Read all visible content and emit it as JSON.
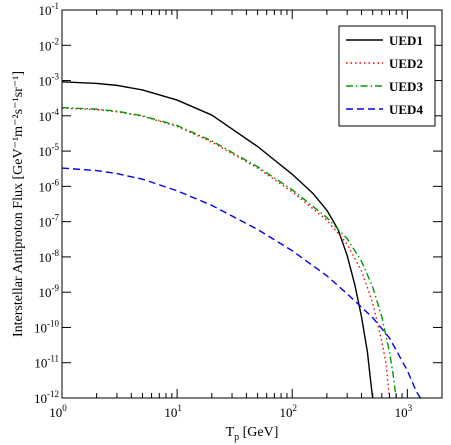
{
  "chart_data": {
    "type": "line",
    "xlabel": {
      "main": "T",
      "sub": "p",
      "rest": " [GeV]"
    },
    "ylabel": "Interstellar Antiproton Flux [GeV⁻¹m⁻²s⁻¹sr⁻¹]",
    "x_scale": "log",
    "y_scale": "log",
    "xlim": [
      1,
      2000
    ],
    "ylim": [
      1e-12,
      0.1
    ],
    "x_ticks": [
      {
        "base": "10",
        "exp": "0",
        "value": 1
      },
      {
        "base": "10",
        "exp": "1",
        "value": 10
      },
      {
        "base": "10",
        "exp": "2",
        "value": 100
      },
      {
        "base": "10",
        "exp": "3",
        "value": 1000
      }
    ],
    "y_ticks": [
      {
        "base": "10",
        "exp": "-12",
        "value": 1e-12
      },
      {
        "base": "10",
        "exp": "-11",
        "value": 1e-11
      },
      {
        "base": "10",
        "exp": "-10",
        "value": 1e-10
      },
      {
        "base": "10",
        "exp": "-9",
        "value": 1e-09
      },
      {
        "base": "10",
        "exp": "-8",
        "value": 1e-08
      },
      {
        "base": "10",
        "exp": "-7",
        "value": 1e-07
      },
      {
        "base": "10",
        "exp": "-6",
        "value": 1e-06
      },
      {
        "base": "10",
        "exp": "-5",
        "value": 1e-05
      },
      {
        "base": "10",
        "exp": "-4",
        "value": 0.0001
      },
      {
        "base": "10",
        "exp": "-3",
        "value": 0.001
      },
      {
        "base": "10",
        "exp": "-2",
        "value": 0.01
      },
      {
        "base": "10",
        "exp": "-1",
        "value": 0.1
      }
    ],
    "grid": false,
    "legend_position": "top-right",
    "series": [
      {
        "name": "UED1",
        "color": "#000000",
        "dash": "solid",
        "points": [
          [
            1,
            0.00092
          ],
          [
            2,
            0.00083
          ],
          [
            3,
            0.00073
          ],
          [
            5,
            0.00054
          ],
          [
            10,
            0.00028
          ],
          [
            20,
            0.000105
          ],
          [
            50,
            1.35e-05
          ],
          [
            100,
            2.2e-06
          ],
          [
            150,
            6.5e-07
          ],
          [
            200,
            2.1e-07
          ],
          [
            250,
            6e-08
          ],
          [
            300,
            1.1e-08
          ],
          [
            350,
            1.6e-09
          ],
          [
            400,
            2e-10
          ],
          [
            450,
            2e-11
          ],
          [
            480,
            3e-12
          ],
          [
            500,
            1e-12
          ]
        ]
      },
      {
        "name": "UED2",
        "color": "#ff0000",
        "dash": "dotted",
        "points": [
          [
            1,
            0.000165
          ],
          [
            2,
            0.00015
          ],
          [
            3,
            0.00013
          ],
          [
            5,
            9.8e-05
          ],
          [
            10,
            5e-05
          ],
          [
            20,
            1.8e-05
          ],
          [
            50,
            3.3e-06
          ],
          [
            100,
            7e-07
          ],
          [
            200,
            1.1e-07
          ],
          [
            300,
            2.3e-08
          ],
          [
            400,
            4e-09
          ],
          [
            500,
            5e-10
          ],
          [
            600,
            4e-11
          ],
          [
            650,
            1e-11
          ],
          [
            700,
            1e-12
          ]
        ]
      },
      {
        "name": "UED3",
        "color": "#009900",
        "dash": "dashdot",
        "points": [
          [
            1,
            0.00017
          ],
          [
            2,
            0.000155
          ],
          [
            3,
            0.000135
          ],
          [
            5,
            0.0001
          ],
          [
            10,
            5.3e-05
          ],
          [
            20,
            1.95e-05
          ],
          [
            50,
            3.6e-06
          ],
          [
            100,
            8e-07
          ],
          [
            200,
            1.3e-07
          ],
          [
            300,
            3.3e-08
          ],
          [
            400,
            7.5e-09
          ],
          [
            500,
            1.4e-09
          ],
          [
            600,
            2e-10
          ],
          [
            700,
            2e-11
          ],
          [
            750,
            5e-12
          ],
          [
            800,
            1e-12
          ]
        ]
      },
      {
        "name": "UED4",
        "color": "#0000ee",
        "dash": "dashed",
        "points": [
          [
            1,
            3.3e-06
          ],
          [
            2,
            2.8e-06
          ],
          [
            3,
            2.3e-06
          ],
          [
            5,
            1.6e-06
          ],
          [
            10,
            7.5e-07
          ],
          [
            20,
            2.9e-07
          ],
          [
            50,
            6e-08
          ],
          [
            100,
            1.5e-08
          ],
          [
            200,
            2.9e-09
          ],
          [
            300,
            9e-10
          ],
          [
            500,
            1.9e-10
          ],
          [
            700,
            5e-11
          ],
          [
            1000,
            6e-12
          ],
          [
            1200,
            1.5e-12
          ],
          [
            1300,
            1e-12
          ]
        ]
      }
    ]
  }
}
